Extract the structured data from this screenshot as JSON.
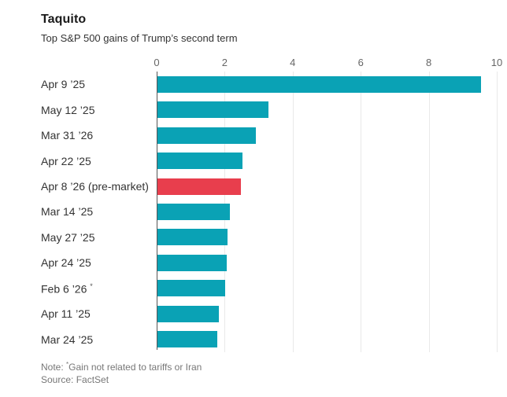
{
  "chart_data": {
    "type": "bar",
    "orientation": "horizontal",
    "title": "Taquito",
    "subtitle": "Top S&P 500 gains of Trump’s second term",
    "categories": [
      {
        "label": "Apr 9 ’25",
        "sup": ""
      },
      {
        "label": "May 12 ’25",
        "sup": ""
      },
      {
        "label": "Mar 31 ’26",
        "sup": ""
      },
      {
        "label": "Apr 22 ’25",
        "sup": ""
      },
      {
        "label": "Apr 8 ’26 (pre-market)",
        "sup": ""
      },
      {
        "label": "Mar 14 ’25",
        "sup": ""
      },
      {
        "label": "May 27 ’25",
        "sup": ""
      },
      {
        "label": "Apr 24 ’25",
        "sup": ""
      },
      {
        "label": "Feb 6 ’26",
        "sup": "*"
      },
      {
        "label": "Apr 11 ’25",
        "sup": ""
      },
      {
        "label": "Mar 24 ’25",
        "sup": ""
      }
    ],
    "values": [
      9.52,
      3.26,
      2.9,
      2.51,
      2.46,
      2.13,
      2.05,
      2.03,
      2.0,
      1.81,
      1.77
    ],
    "highlight_index": 4,
    "bar_color": "#0aa2b5",
    "highlight_color": "#e83e4d",
    "xlim": [
      0,
      10
    ],
    "x_ticks": [
      0,
      2,
      4,
      6,
      8,
      10
    ],
    "grid_color": "#e9e9e9",
    "axis_color": "#555555",
    "xlabel": "",
    "ylabel": "",
    "legend": "none",
    "grid": "vertical-only"
  },
  "footer": {
    "note_prefix": "Note: ",
    "note_sup": "*",
    "note_text": "Gain not related to tariffs or Iran",
    "source": "Source: FactSet"
  }
}
